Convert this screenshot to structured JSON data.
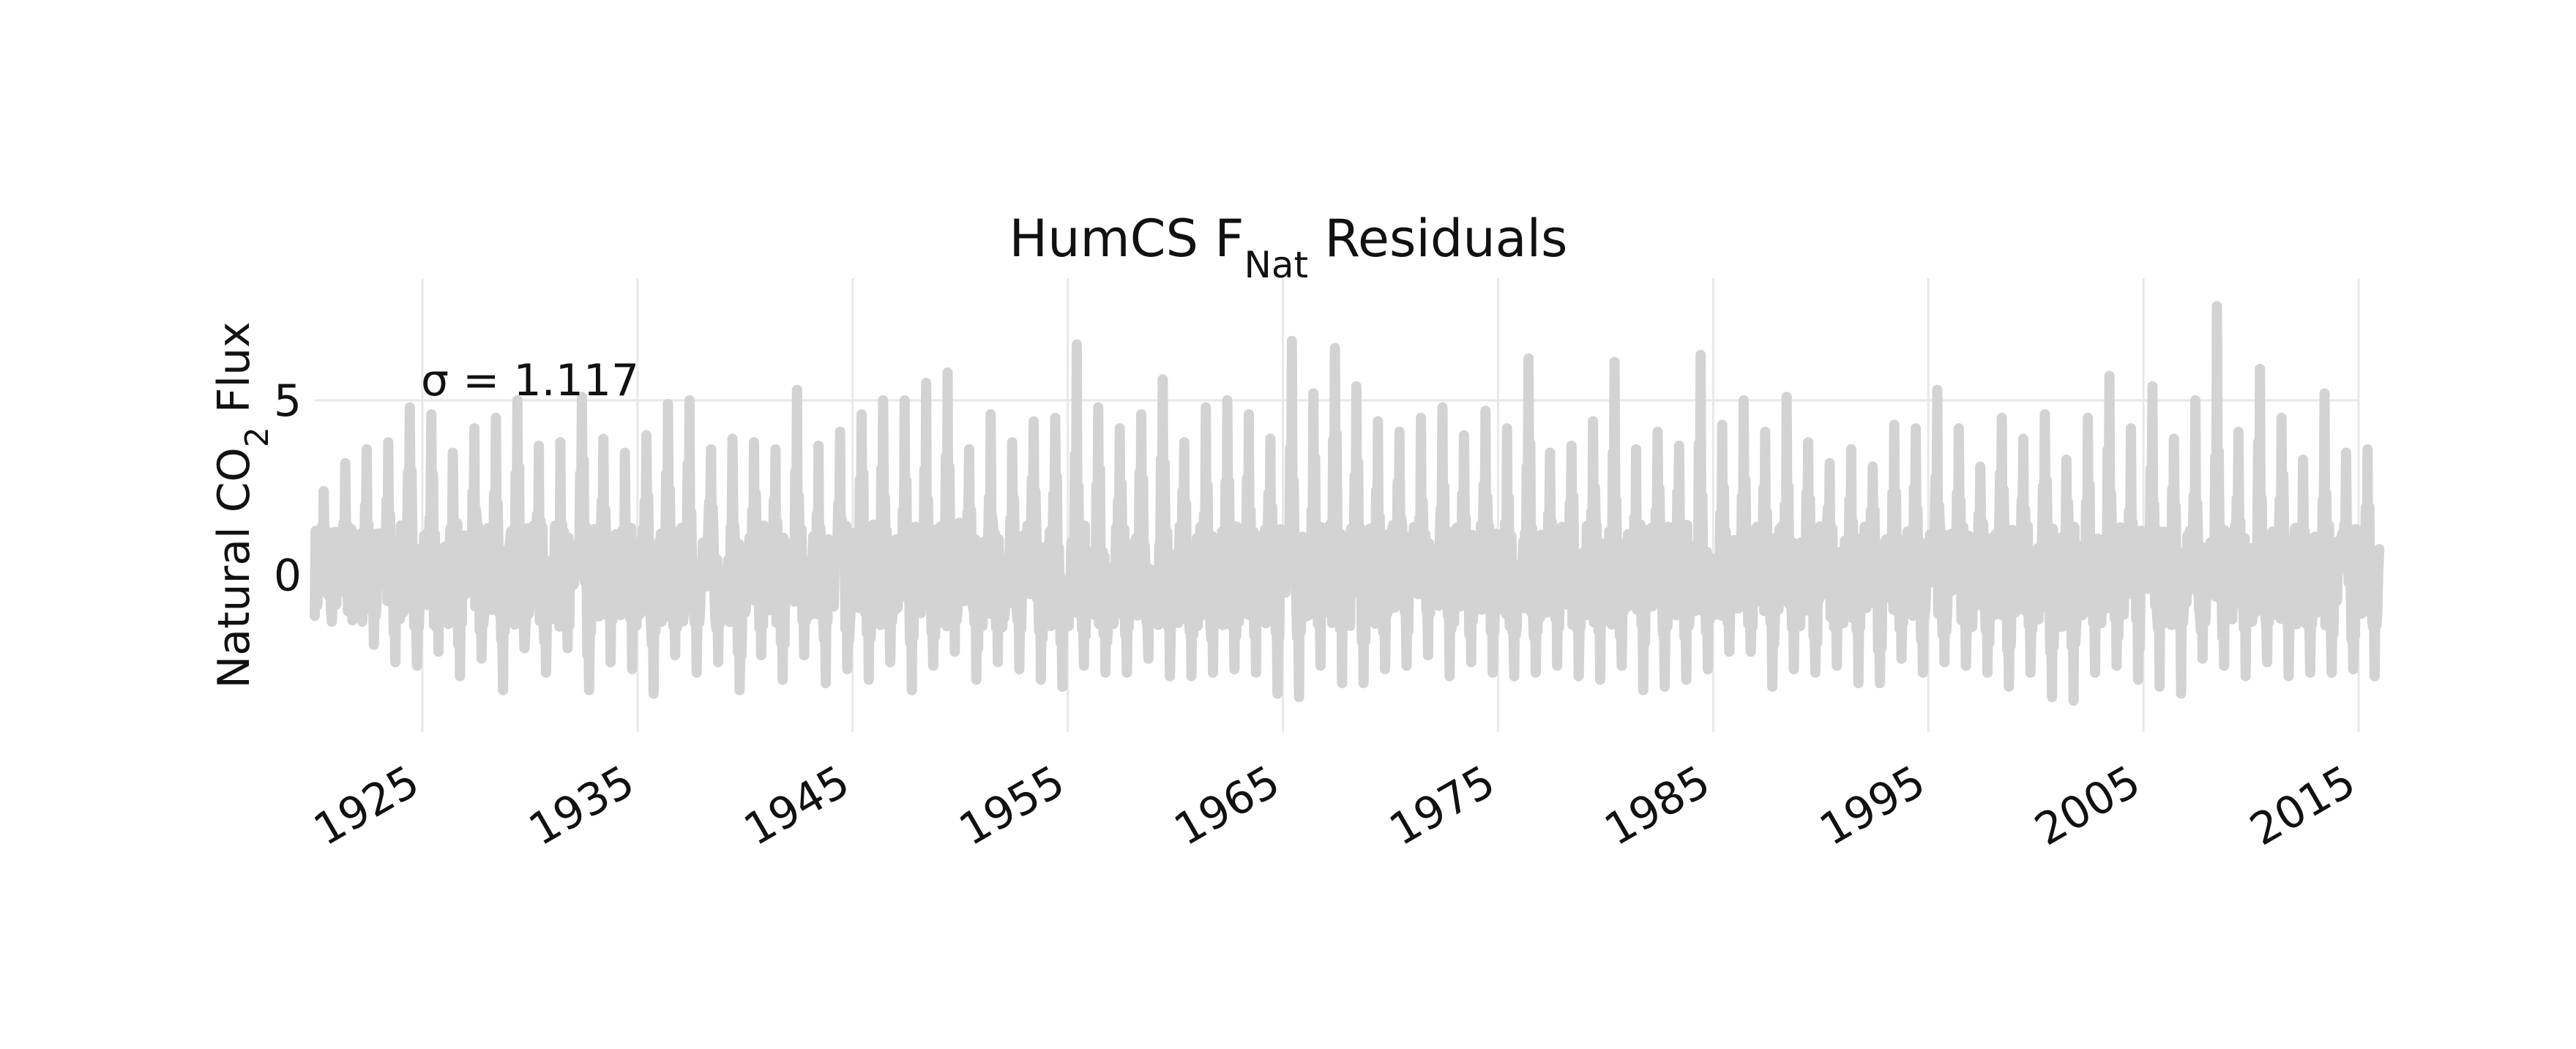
{
  "chart_data": {
    "type": "line",
    "title": "HumCS F",
    "title_subscript": "Nat",
    "title_suffix": " Residuals",
    "ylabel": "Natural CO",
    "ylabel_subscript": "2",
    "ylabel_suffix": " Flux",
    "xlabel": "",
    "annotation": "σ = 1.117",
    "x_range": [
      1920,
      2015
    ],
    "ylim": [
      -4.5,
      8.5
    ],
    "x_ticks": [
      1925,
      1935,
      1945,
      1955,
      1965,
      1975,
      1985,
      1995,
      2005,
      2015
    ],
    "y_ticks": [
      0,
      5
    ],
    "grid": true,
    "legend": "none",
    "series_color": "#d3d3d3",
    "grid_color": "#e8e8e8",
    "series": [
      {
        "sampling": "monthly",
        "start": "1920-01",
        "end": "2015-12",
        "sigma": 1.117,
        "annual_peak_values": [
          2.4,
          3.2,
          3.6,
          3.8,
          4.8,
          4.6,
          3.5,
          4.2,
          4.5,
          5.0,
          3.7,
          3.8,
          5.1,
          3.9,
          3.5,
          4.0,
          4.9,
          5.0,
          3.6,
          3.9,
          3.8,
          3.6,
          5.3,
          3.7,
          4.1,
          4.6,
          5.0,
          5.0,
          5.5,
          5.8,
          3.6,
          4.6,
          3.8,
          4.4,
          4.5,
          6.6,
          4.8,
          4.2,
          4.6,
          5.6,
          3.8,
          4.8,
          5.0,
          4.6,
          3.9,
          6.7,
          5.2,
          6.5,
          5.4,
          4.4,
          4.1,
          4.5,
          4.8,
          4.0,
          4.7,
          4.2,
          6.2,
          3.5,
          3.7,
          4.4,
          6.1,
          3.6,
          4.1,
          3.7,
          6.3,
          4.3,
          5.0,
          4.1,
          5.1,
          3.8,
          3.2,
          3.6,
          3.1,
          4.3,
          4.2,
          5.3,
          4.2,
          3.1,
          4.5,
          3.9,
          4.6,
          3.3,
          4.5,
          5.7,
          4.2,
          5.4,
          3.9,
          5.0,
          7.7,
          4.1,
          5.9,
          4.5,
          3.3,
          5.2,
          3.5,
          3.6
        ],
        "annual_trough_values": [
          -1.0,
          -1.3,
          -2.0,
          -2.5,
          -2.6,
          -2.2,
          -2.9,
          -2.4,
          -3.3,
          -2.1,
          -2.8,
          -2.1,
          -3.3,
          -2.5,
          -2.7,
          -3.4,
          -2.3,
          -2.8,
          -2.5,
          -3.3,
          -2.3,
          -3.0,
          -2.3,
          -3.1,
          -2.7,
          -3.0,
          -2.5,
          -3.3,
          -2.6,
          -2.2,
          -3.0,
          -2.5,
          -2.7,
          -3.0,
          -3.2,
          -2.6,
          -2.8,
          -2.8,
          -2.4,
          -2.9,
          -2.9,
          -2.8,
          -2.7,
          -2.8,
          -3.4,
          -3.5,
          -2.6,
          -3.1,
          -3.1,
          -2.7,
          -2.6,
          -2.3,
          -2.9,
          -2.5,
          -2.8,
          -2.9,
          -2.8,
          -2.6,
          -2.9,
          -3.0,
          -2.6,
          -3.3,
          -3.2,
          -3.0,
          -2.7,
          -2.2,
          -2.2,
          -3.2,
          -2.7,
          -2.8,
          -2.6,
          -3.1,
          -3.1,
          -2.4,
          -2.8,
          -2.5,
          -2.6,
          -2.8,
          -3.2,
          -2.8,
          -3.5,
          -3.6,
          -2.8,
          -2.6,
          -3.0,
          -3.2,
          -3.4,
          -2.4,
          -2.6,
          -2.9,
          -2.5,
          -2.9,
          -2.8,
          -2.8,
          -2.7,
          -2.9
        ]
      }
    ]
  }
}
